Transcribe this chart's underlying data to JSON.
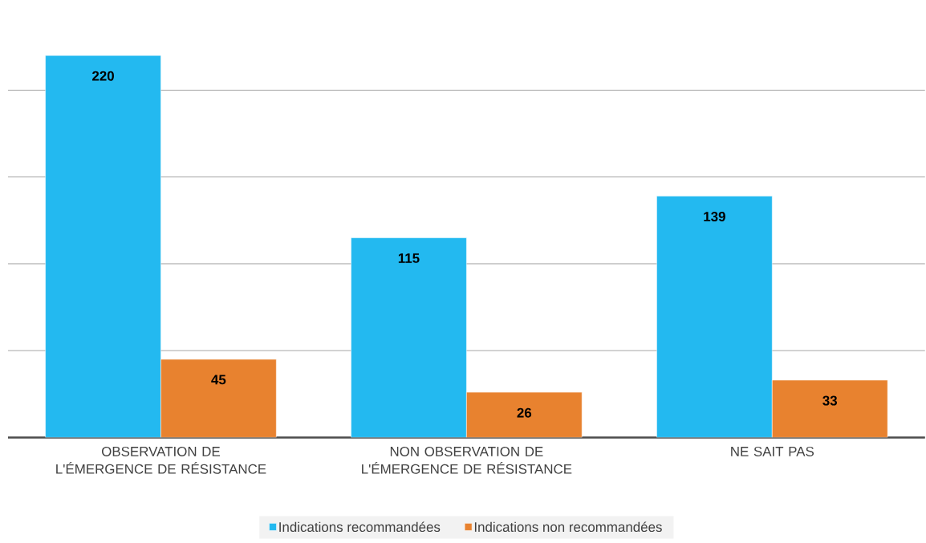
{
  "chart_data": {
    "type": "bar",
    "categories": [
      "OBSERVATION DE L'ÉMERGENCE DE RÉSISTANCE",
      "NON OBSERVATION DE L'ÉMERGENCE DE RÉSISTANCE",
      "NE SAIT PAS"
    ],
    "series": [
      {
        "name": "Indications recommandées",
        "color": "#23b9f0",
        "values": [
          220,
          115,
          139
        ]
      },
      {
        "name": "Indications non recommandées",
        "color": "#e8822f",
        "values": [
          45,
          26,
          33
        ]
      }
    ],
    "tick_labels": "x",
    "grid": "y",
    "legend": "bottom",
    "data_labels": true
  }
}
